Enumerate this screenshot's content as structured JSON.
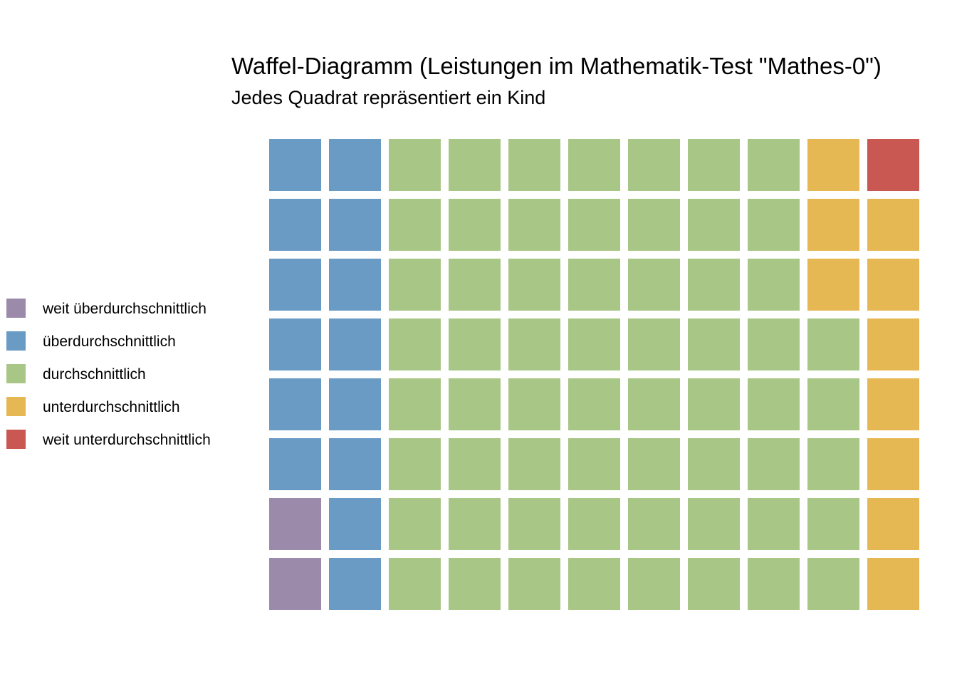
{
  "chart_data": {
    "type": "waffle",
    "title": "Waffel-Diagramm (Leistungen im Mathematik-Test \"Mathes-0\")",
    "subtitle": "Jedes Quadrat repräsentiert ein Kind",
    "grid": {
      "columns": 11,
      "rows": 8,
      "fill_order": "column-wise, bottom to top, left to right"
    },
    "categories": [
      {
        "label": "weit überdurchschnittlich",
        "count": 2,
        "color": "#9b8aaa"
      },
      {
        "label": "überdurchschnittlich",
        "count": 14,
        "color": "#6a9bc5"
      },
      {
        "label": "durchschnittlich",
        "count": 61,
        "color": "#a8c686"
      },
      {
        "label": "unterdurchschnittlich",
        "count": 10,
        "color": "#e6b854"
      },
      {
        "label": "weit unterdurchschnittlich",
        "count": 1,
        "color": "#c95752"
      }
    ],
    "legend_position": "left"
  }
}
